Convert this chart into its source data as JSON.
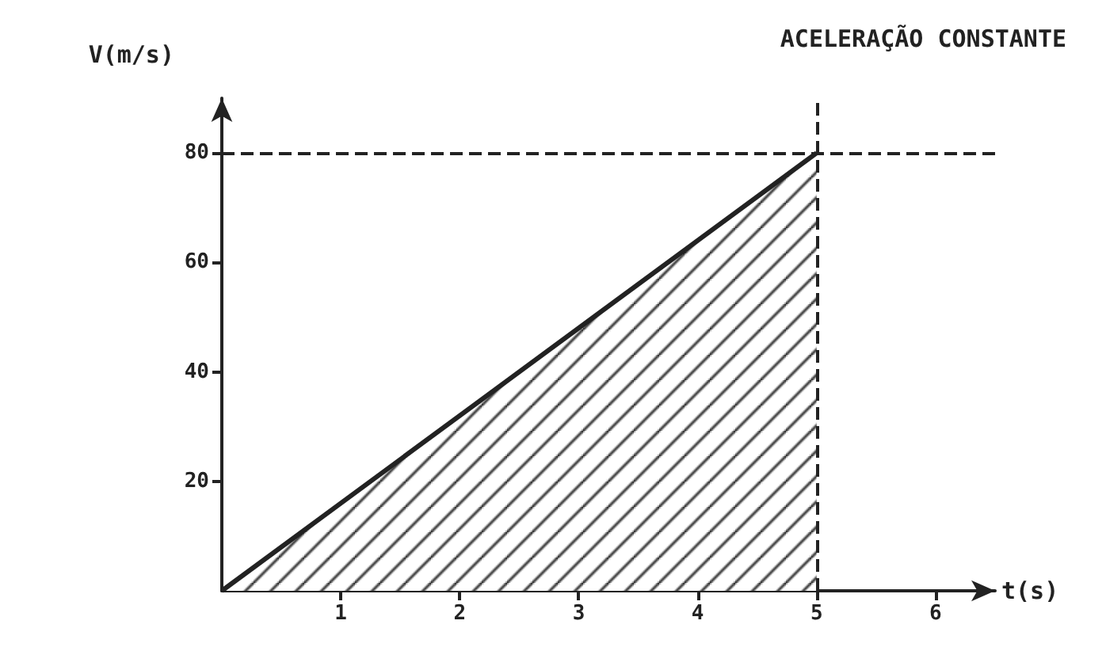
{
  "chart_data": {
    "type": "area",
    "title": "ACELERAÇÃO CONSTANTE",
    "xlabel": "t(s)",
    "ylabel": "V(m/s)",
    "x": [
      0,
      5
    ],
    "series": [
      {
        "color": "#222222",
        "values": [
          0,
          80
        ]
      }
    ],
    "xlim": [
      0,
      6.5
    ],
    "xticks": [
      1,
      2,
      3,
      4,
      5,
      6
    ],
    "ylim": [
      0,
      90
    ],
    "yticks": [
      20,
      40,
      60,
      80
    ],
    "ref_lines": [
      {
        "axis": "y",
        "value": 80,
        "line_style": "dashed",
        "color": "#222222"
      },
      {
        "axis": "x",
        "value": 5,
        "line_style": "dashed",
        "color": "#222222"
      }
    ],
    "grid": false,
    "marker": "none",
    "line_style": "solid"
  }
}
